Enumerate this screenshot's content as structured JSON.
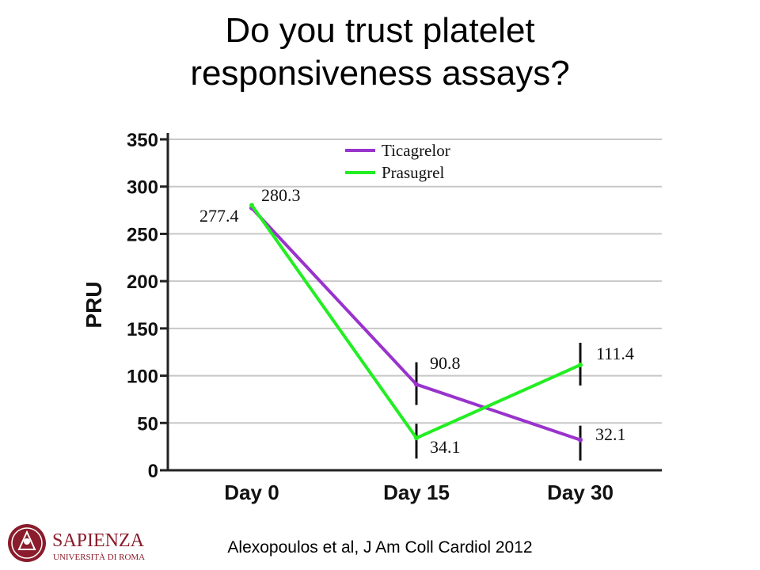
{
  "slide": {
    "title_line1": "Do you trust platelet",
    "title_line2": "responsiveness assays?",
    "citation": "Alexopoulos et al, J Am Coll Cardiol 2012"
  },
  "logo": {
    "name": "SAPIENZA",
    "subtitle": "UNIVERSITÀ DI ROMA",
    "color": "#8a1c2b"
  },
  "chart_data": {
    "type": "line",
    "ylabel": "PRU",
    "xlabel": "",
    "ylim": [
      0,
      350
    ],
    "yticks": [
      0,
      50,
      100,
      150,
      200,
      250,
      300,
      350
    ],
    "categories": [
      "Day 0",
      "Day 15",
      "Day 30"
    ],
    "grid": true,
    "legend_position": "top-right",
    "series": [
      {
        "name": "Ticagrelor",
        "color": "#9933cc",
        "values": [
          277.4,
          90.8,
          32.1
        ],
        "labels": [
          "277.4",
          "",
          "32.1"
        ]
      },
      {
        "name": "Prasugrel",
        "color": "#22ee22",
        "values": [
          280.3,
          34.1,
          111.4
        ],
        "labels": [
          "280.3",
          "34.1",
          "111.4"
        ]
      }
    ],
    "annotations": [
      "90.8"
    ]
  }
}
